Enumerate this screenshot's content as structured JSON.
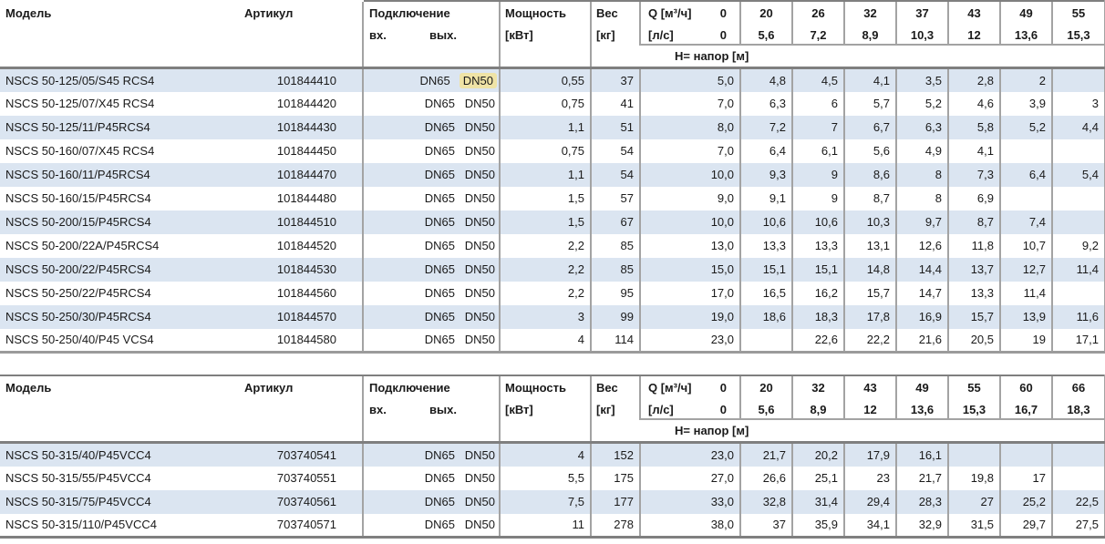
{
  "colors": {
    "stripe": "#dbe5f1",
    "grid_line": "#a3a3a3",
    "heavy_line": "#7f7f7f",
    "highlight": "#efe3a6",
    "text": "#1a1a1a"
  },
  "tables": [
    {
      "headers": {
        "model": "Модель",
        "artikul": "Артикул",
        "connection": "Подключение",
        "conn_in": "вх.",
        "conn_out": "вых.",
        "power_l1": "Мощность",
        "power_l2": "[кВт]",
        "weight_l1": "Вес",
        "weight_l2": "[кг]",
        "q_l1": "Q [м³/ч]",
        "q_l2": "[л/с]",
        "q0_l1": "0",
        "q0_l2": "0",
        "napor": "Н= напор [м]",
        "q_cols": [
          {
            "m3h": "20",
            "ls": "5,6"
          },
          {
            "m3h": "26",
            "ls": "7,2"
          },
          {
            "m3h": "32",
            "ls": "8,9"
          },
          {
            "m3h": "37",
            "ls": "10,3"
          },
          {
            "m3h": "43",
            "ls": "12"
          },
          {
            "m3h": "49",
            "ls": "13,6"
          },
          {
            "m3h": "55",
            "ls": "15,3"
          }
        ]
      },
      "rows": [
        {
          "model": "NSCS 50-125/05/S45 RCS4",
          "artikul": "101844410",
          "dn_in": "DN65",
          "dn_out": "DN50",
          "dn_out_highlight": true,
          "power": "0,55",
          "weight": "37",
          "q": [
            "5,0",
            "4,8",
            "4,5",
            "4,1",
            "3,5",
            "2,8",
            "2",
            ""
          ]
        },
        {
          "model": "NSCS 50-125/07/X45 RCS4",
          "artikul": "101844420",
          "dn_in": "DN65",
          "dn_out": "DN50",
          "dn_out_highlight": false,
          "power": "0,75",
          "weight": "41",
          "q": [
            "7,0",
            "6,3",
            "6",
            "5,7",
            "5,2",
            "4,6",
            "3,9",
            "3"
          ]
        },
        {
          "model": "NSCS 50-125/11/P45RCS4",
          "artikul": "101844430",
          "dn_in": "DN65",
          "dn_out": "DN50",
          "dn_out_highlight": false,
          "power": "1,1",
          "weight": "51",
          "q": [
            "8,0",
            "7,2",
            "7",
            "6,7",
            "6,3",
            "5,8",
            "5,2",
            "4,4"
          ]
        },
        {
          "model": "NSCS 50-160/07/X45 RCS4",
          "artikul": "101844450",
          "dn_in": "DN65",
          "dn_out": "DN50",
          "dn_out_highlight": false,
          "power": "0,75",
          "weight": "54",
          "q": [
            "7,0",
            "6,4",
            "6,1",
            "5,6",
            "4,9",
            "4,1",
            "",
            ""
          ]
        },
        {
          "model": "NSCS 50-160/11/P45RCS4",
          "artikul": "101844470",
          "dn_in": "DN65",
          "dn_out": "DN50",
          "dn_out_highlight": false,
          "power": "1,1",
          "weight": "54",
          "q": [
            "10,0",
            "9,3",
            "9",
            "8,6",
            "8",
            "7,3",
            "6,4",
            "5,4"
          ]
        },
        {
          "model": "NSCS 50-160/15/P45RCS4",
          "artikul": "101844480",
          "dn_in": "DN65",
          "dn_out": "DN50",
          "dn_out_highlight": false,
          "power": "1,5",
          "weight": "57",
          "q": [
            "9,0",
            "9,1",
            "9",
            "8,7",
            "8",
            "6,9",
            "",
            ""
          ]
        },
        {
          "model": "NSCS 50-200/15/P45RCS4",
          "artikul": "101844510",
          "dn_in": "DN65",
          "dn_out": "DN50",
          "dn_out_highlight": false,
          "power": "1,5",
          "weight": "67",
          "q": [
            "10,0",
            "10,6",
            "10,6",
            "10,3",
            "9,7",
            "8,7",
            "7,4",
            ""
          ]
        },
        {
          "model": "NSCS 50-200/22A/P45RCS4",
          "artikul": "101844520",
          "dn_in": "DN65",
          "dn_out": "DN50",
          "dn_out_highlight": false,
          "power": "2,2",
          "weight": "85",
          "q": [
            "13,0",
            "13,3",
            "13,3",
            "13,1",
            "12,6",
            "11,8",
            "10,7",
            "9,2"
          ]
        },
        {
          "model": "NSCS 50-200/22/P45RCS4",
          "artikul": "101844530",
          "dn_in": "DN65",
          "dn_out": "DN50",
          "dn_out_highlight": false,
          "power": "2,2",
          "weight": "85",
          "q": [
            "15,0",
            "15,1",
            "15,1",
            "14,8",
            "14,4",
            "13,7",
            "12,7",
            "11,4"
          ]
        },
        {
          "model": "NSCS 50-250/22/P45RCS4",
          "artikul": "101844560",
          "dn_in": "DN65",
          "dn_out": "DN50",
          "dn_out_highlight": false,
          "power": "2,2",
          "weight": "95",
          "q": [
            "17,0",
            "16,5",
            "16,2",
            "15,7",
            "14,7",
            "13,3",
            "11,4",
            ""
          ]
        },
        {
          "model": "NSCS 50-250/30/P45RCS4",
          "artikul": "101844570",
          "dn_in": "DN65",
          "dn_out": "DN50",
          "dn_out_highlight": false,
          "power": "3",
          "weight": "99",
          "q": [
            "19,0",
            "18,6",
            "18,3",
            "17,8",
            "16,9",
            "15,7",
            "13,9",
            "11,6"
          ]
        },
        {
          "model": "NSCS 50-250/40/P45 VCS4",
          "artikul": "101844580",
          "dn_in": "DN65",
          "dn_out": "DN50",
          "dn_out_highlight": false,
          "power": "4",
          "weight": "114",
          "q": [
            "23,0",
            "",
            "22,6",
            "22,2",
            "21,6",
            "20,5",
            "19",
            "17,1"
          ]
        }
      ]
    },
    {
      "headers": {
        "model": "Модель",
        "artikul": "Артикул",
        "connection": "Подключение",
        "conn_in": "вх.",
        "conn_out": "вых.",
        "power_l1": "Мощность",
        "power_l2": "[кВт]",
        "weight_l1": "Вес",
        "weight_l2": "[кг]",
        "q_l1": "Q [м³/ч]",
        "q_l2": "[л/с]",
        "q0_l1": "0",
        "q0_l2": "0",
        "napor": "Н= напор [м]",
        "q_cols": [
          {
            "m3h": "20",
            "ls": "5,6"
          },
          {
            "m3h": "32",
            "ls": "8,9"
          },
          {
            "m3h": "43",
            "ls": "12"
          },
          {
            "m3h": "49",
            "ls": "13,6"
          },
          {
            "m3h": "55",
            "ls": "15,3"
          },
          {
            "m3h": "60",
            "ls": "16,7"
          },
          {
            "m3h": "66",
            "ls": "18,3"
          }
        ]
      },
      "rows": [
        {
          "model": "NSCS 50-315/40/P45VCC4",
          "artikul": "703740541",
          "dn_in": "DN65",
          "dn_out": "DN50",
          "dn_out_highlight": false,
          "power": "4",
          "weight": "152",
          "q": [
            "23,0",
            "21,7",
            "20,2",
            "17,9",
            "16,1",
            "",
            "",
            ""
          ]
        },
        {
          "model": "NSCS 50-315/55/P45VCC4",
          "artikul": "703740551",
          "dn_in": "DN65",
          "dn_out": "DN50",
          "dn_out_highlight": false,
          "power": "5,5",
          "weight": "175",
          "q": [
            "27,0",
            "26,6",
            "25,1",
            "23",
            "21,7",
            "19,8",
            "17",
            ""
          ]
        },
        {
          "model": "NSCS 50-315/75/P45VCC4",
          "artikul": "703740561",
          "dn_in": "DN65",
          "dn_out": "DN50",
          "dn_out_highlight": false,
          "power": "7,5",
          "weight": "177",
          "q": [
            "33,0",
            "32,8",
            "31,4",
            "29,4",
            "28,3",
            "27",
            "25,2",
            "22,5"
          ]
        },
        {
          "model": "NSCS 50-315/110/P45VCC4",
          "artikul": "703740571",
          "dn_in": "DN65",
          "dn_out": "DN50",
          "dn_out_highlight": false,
          "power": "11",
          "weight": "278",
          "q": [
            "38,0",
            "37",
            "35,9",
            "34,1",
            "32,9",
            "31,5",
            "29,7",
            "27,5"
          ]
        }
      ]
    }
  ]
}
